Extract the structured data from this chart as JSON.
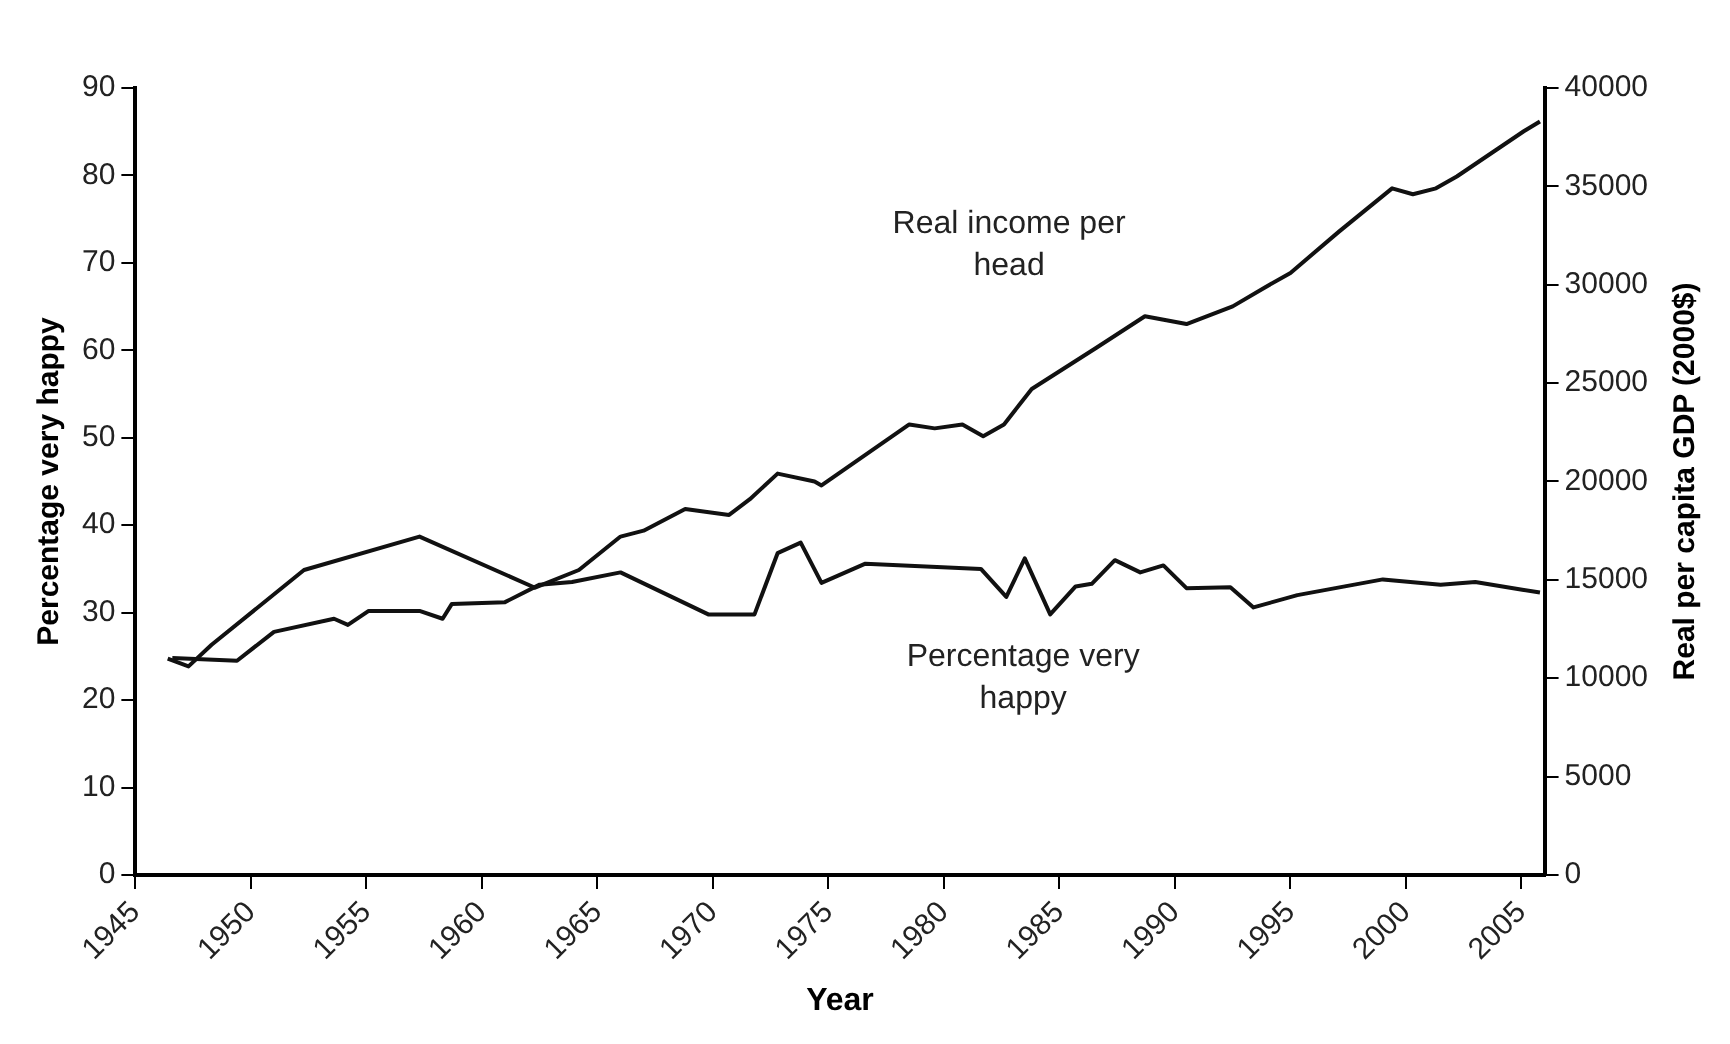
{
  "chart_data": {
    "type": "line",
    "xlabel": "Year",
    "ylabel": "Percentage very happy",
    "y2label": "Real per capita GDP (2000$)",
    "xlim": [
      1945,
      2006
    ],
    "xticks": [
      1945,
      1950,
      1955,
      1960,
      1965,
      1970,
      1975,
      1980,
      1985,
      1990,
      1995,
      2000,
      2005
    ],
    "ylim": [
      0,
      90
    ],
    "yticks": [
      0,
      10,
      20,
      30,
      40,
      50,
      60,
      70,
      80,
      90
    ],
    "y2lim": [
      0,
      40000
    ],
    "y2ticks": [
      0,
      5000,
      10000,
      15000,
      20000,
      25000,
      30000,
      35000,
      40000
    ],
    "grid": false,
    "legend": false,
    "marker": "none",
    "line_style": "solid",
    "series": [
      {
        "name": "Real income per head",
        "color": "#111111",
        "axis": "y2",
        "x": [
          1946.4,
          1947.3,
          1948.3,
          1952.3,
          1957.3,
          1962.3,
          1964.2,
          1966,
          1967,
          1968.8,
          1970.7,
          1971.6,
          1972.8,
          1974.4,
          1974.7,
          1978.5,
          1979.6,
          1980.8,
          1981.7,
          1982.6,
          1983.8,
          1986.6,
          1988.7,
          1990.5,
          1992.5,
          1993.8,
          1995,
          1997.1,
          1999.4,
          2000.3,
          2001.3,
          2002.2,
          2005.1,
          2005.8
        ],
        "values": [
          11000,
          10600,
          11700,
          15500,
          17200,
          14600,
          15500,
          17200,
          17500,
          18600,
          18300,
          19100,
          20400,
          20000,
          19800,
          22900,
          22700,
          22900,
          22300,
          22900,
          24700,
          26800,
          28400,
          28000,
          28900,
          29800,
          30600,
          32700,
          34900,
          34600,
          34900,
          35500,
          37800,
          38300
        ]
      },
      {
        "name": "Percentage very happy",
        "color": "#111111",
        "axis": "y",
        "x": [
          1946.6,
          1949.4,
          1951,
          1953.6,
          1954.2,
          1955.1,
          1957.3,
          1958.3,
          1958.7,
          1961,
          1962.5,
          1963.9,
          1966,
          1969.8,
          1971.8,
          1972.8,
          1973.8,
          1974.7,
          1976.6,
          1981.6,
          1982.7,
          1983.5,
          1984.6,
          1985.7,
          1986.4,
          1987.4,
          1988.5,
          1989.5,
          1990.5,
          1992.4,
          1993.4,
          1995.3,
          1999,
          2001.5,
          2003,
          2005.1,
          2005.8
        ],
        "values": [
          24.8,
          24.5,
          27.8,
          29.3,
          28.6,
          30.2,
          30.2,
          29.3,
          31,
          31.2,
          33.2,
          33.5,
          34.6,
          29.8,
          29.8,
          36.8,
          38,
          33.4,
          35.6,
          35,
          31.8,
          36.2,
          29.8,
          33,
          33.3,
          36,
          34.6,
          35.4,
          32.8,
          32.9,
          30.6,
          32,
          33.8,
          33.2,
          33.5,
          32.6,
          32.3
        ]
      }
    ]
  }
}
